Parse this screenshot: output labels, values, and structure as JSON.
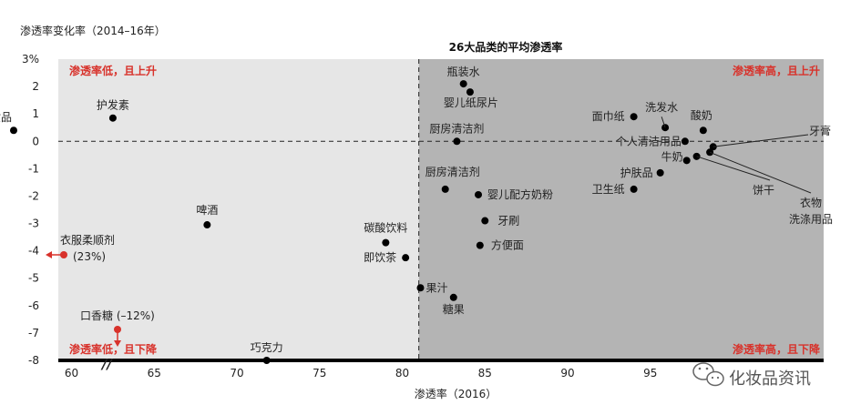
{
  "chart_data": {
    "type": "scatter",
    "title": "26大品类的平均渗透率",
    "ylabel": "渗透率变化率（2014–16年）",
    "xlabel": "渗透率（2016）",
    "xlim": [
      55,
      102
    ],
    "ylim": [
      -8,
      3
    ],
    "x_ticks": [
      "60",
      "65",
      "70",
      "75",
      "80",
      "85",
      "90",
      "95"
    ],
    "y_ticks": [
      "3%",
      "2",
      "1",
      "0",
      "-1",
      "-2",
      "-3",
      "-4",
      "-5",
      "-6",
      "-7",
      "-8"
    ],
    "y_tick_values": [
      3,
      2,
      1,
      0,
      -1,
      -2,
      -3,
      -4,
      -5,
      -6,
      -7,
      -8
    ],
    "x_divider": 81,
    "y_divider": 0,
    "axis_break_mark": "//",
    "quadrants": {
      "top_left": "渗透率低，且上升",
      "top_right": "渗透率高，且上升",
      "bottom_left": "渗透率低，且下降",
      "bottom_right": "渗透率高，且下降"
    },
    "points": [
      {
        "label": "化妆品",
        "x": 56.5,
        "y": 0.4
      },
      {
        "label": "护发素",
        "x": 62.5,
        "y": 0.85
      },
      {
        "label": "啤酒",
        "x": 68.2,
        "y": -3.05
      },
      {
        "label": "碳酸饮料",
        "x": 79.0,
        "y": -3.7
      },
      {
        "label": "即饮茶",
        "x": 80.2,
        "y": -4.25
      },
      {
        "label": "果汁",
        "x": 81.1,
        "y": -5.35
      },
      {
        "label": "糖果",
        "x": 83.1,
        "y": -5.7
      },
      {
        "label": "巧克力",
        "x": 71.8,
        "y": -8.0
      },
      {
        "label": "瓶装水",
        "x": 83.7,
        "y": 2.1
      },
      {
        "label": "婴儿纸尿片",
        "x": 84.1,
        "y": 1.8
      },
      {
        "label": "厨房清洁剂",
        "x": 83.3,
        "y": 0.0
      },
      {
        "label": "厨房清洁剂",
        "x": 82.6,
        "y": -1.75
      },
      {
        "label": "婴儿配方奶粉",
        "x": 84.6,
        "y": -1.95
      },
      {
        "label": "牙刷",
        "x": 85.0,
        "y": -2.9
      },
      {
        "label": "方便面",
        "x": 84.7,
        "y": -3.8
      },
      {
        "label": "面巾纸",
        "x": 94.0,
        "y": 0.9
      },
      {
        "label": "洗发水",
        "x": 95.9,
        "y": 0.5
      },
      {
        "label": "酸奶",
        "x": 98.2,
        "y": 0.4
      },
      {
        "label": "个人清洁用品",
        "x": 97.1,
        "y": 0.0
      },
      {
        "label": "牙膏",
        "x": 98.8,
        "y": -0.2
      },
      {
        "label": "牛奶",
        "x": 97.2,
        "y": -0.7
      },
      {
        "label": "饼干",
        "x": 97.8,
        "y": -0.55
      },
      {
        "label": "衣物洗涤用品",
        "x": 98.6,
        "y": -0.4
      },
      {
        "label": "护肤品",
        "x": 95.6,
        "y": -1.15
      },
      {
        "label": "卫生纸",
        "x": 94.0,
        "y": -1.75
      }
    ],
    "outliers": [
      {
        "label": "衣服柔顺剂",
        "value_label": "(23%)",
        "direction": "left"
      },
      {
        "label": "口香糖 (–12%)",
        "direction": "down"
      }
    ]
  },
  "colors": {
    "low_bg": "#e6e6e6",
    "high_bg": "#b4b4b4",
    "point": "#000000",
    "accent": "#d8322b"
  },
  "watermark": "化妆品资讯"
}
